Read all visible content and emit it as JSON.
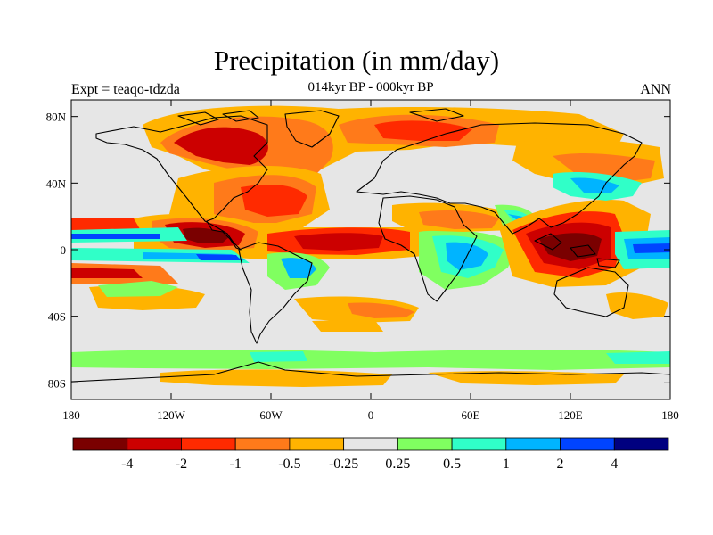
{
  "figure": {
    "title": "Precipitation (in mm/day)",
    "subtitle": "014kyr BP - 000kyr BP",
    "left_label": "Expt = teaqo-tdzda",
    "right_label": "ANN"
  },
  "map": {
    "lat_range": [
      -90,
      90
    ],
    "lon_range": [
      -180,
      180
    ],
    "background_color": "#e6e6e6",
    "y_ticks": [
      {
        "lat": 80,
        "label": "80N"
      },
      {
        "lat": 40,
        "label": "40N"
      },
      {
        "lat": 0,
        "label": "0"
      },
      {
        "lat": -40,
        "label": "40S"
      },
      {
        "lat": -80,
        "label": "80S"
      }
    ],
    "x_ticks": [
      {
        "lon": -180,
        "label": "180"
      },
      {
        "lon": -120,
        "label": "120W"
      },
      {
        "lon": -60,
        "label": "60W"
      },
      {
        "lon": 0,
        "label": "0"
      },
      {
        "lon": 60,
        "label": "60E"
      },
      {
        "lon": 120,
        "label": "120E"
      },
      {
        "lon": 180,
        "label": "180"
      }
    ]
  },
  "colorbar": {
    "colors": [
      "#7a0000",
      "#cc0000",
      "#ff2a00",
      "#ff7a1a",
      "#ffb300",
      "#e6e6e6",
      "#80ff60",
      "#30ffc8",
      "#00b4ff",
      "#0044ff",
      "#000080"
    ],
    "labels": [
      "-4",
      "-2",
      "-1",
      "-0.5",
      "-0.25",
      "0.25",
      "0.5",
      "1",
      "2",
      "4"
    ]
  }
}
